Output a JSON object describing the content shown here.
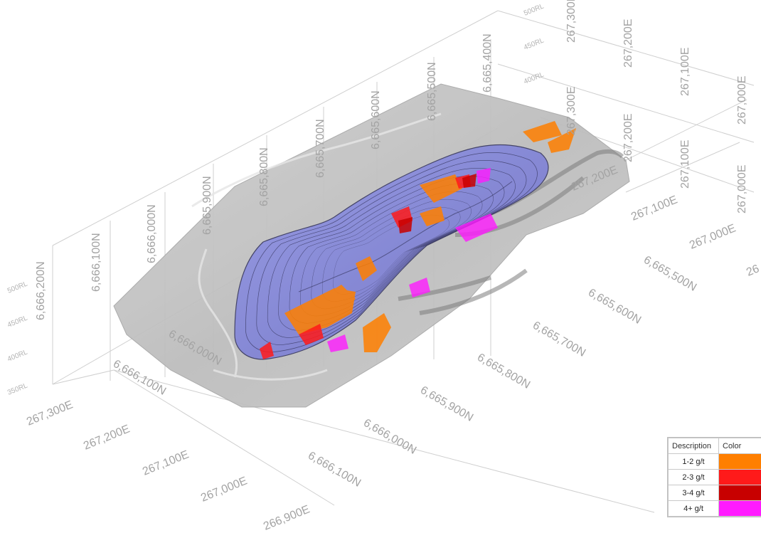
{
  "axes": {
    "northing_front": [
      "6,666,100N",
      "6,666,000N",
      "6,665,900N",
      "6,665,800N",
      "6,665,700N",
      "6,665,600N",
      "6,665,500N"
    ],
    "northing_top": [
      "6,666,200N",
      "6,666,100N",
      "6,666,000N",
      "6,665,900N",
      "6,665,800N",
      "6,665,700N",
      "6,665,600N",
      "6,665,500N",
      "6,665,400N"
    ],
    "easting_front": [
      "267,300E",
      "267,200E",
      "267,100E",
      "267,000E",
      "266,900E"
    ],
    "easting_right_top": [
      "267,300E",
      "267,200E",
      "267,100E",
      "267,000E"
    ],
    "easting_right_mid": [
      "267,300E",
      "267,200E",
      "267,100E",
      "267,000E"
    ],
    "easting_right_lower": [
      "267,200E",
      "267,100E",
      "267,000E"
    ],
    "rl_left": [
      "500RL",
      "450RL",
      "400RL",
      "350RL"
    ],
    "rl_right": [
      "500RL",
      "450RL",
      "400RL"
    ],
    "misc": {
      "inner_north": "6,666,000N",
      "right_edge": "26"
    }
  },
  "legend": {
    "header_description": "Description",
    "header_color": "Color",
    "items": [
      {
        "label": "1-2 g/t",
        "color": "#ff7f00"
      },
      {
        "label": "2-3 g/t",
        "color": "#ff1a1a"
      },
      {
        "label": "3-4 g/t",
        "color": "#c80000"
      },
      {
        "label": "4+ g/t",
        "color": "#ff1aff"
      }
    ]
  },
  "colors": {
    "pit": "#8a8ddf",
    "terrain": "#c4c4c4",
    "grid": "#c8c8c8"
  }
}
